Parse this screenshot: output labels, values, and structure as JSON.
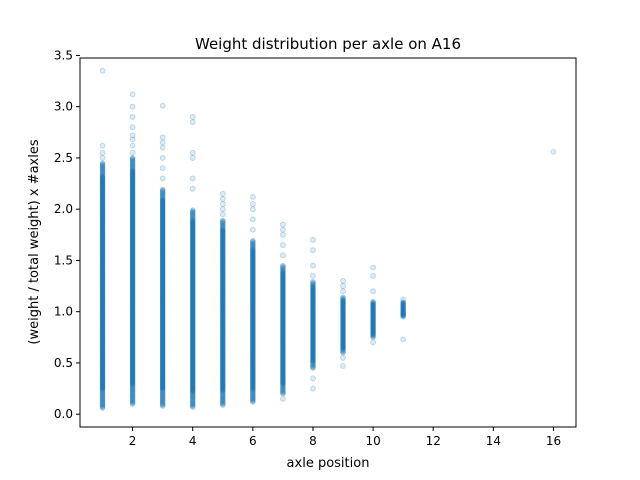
{
  "chart_data": {
    "type": "scatter",
    "title": "Weight distribution per axle on A16",
    "xlabel": "axle position",
    "ylabel": "(weight / total weight) x #axles",
    "xlim": [
      0.25,
      16.75
    ],
    "ylim": [
      -0.125,
      3.475
    ],
    "x_ticks": [
      "2",
      "4",
      "6",
      "8",
      "10",
      "12",
      "14",
      "16"
    ],
    "y_ticks": [
      "0.0",
      "0.5",
      "1.0",
      "1.5",
      "2.0",
      "2.5",
      "3.0",
      "3.5"
    ],
    "grid": false,
    "legend": "none",
    "marker_color": "#1f77b4",
    "marker_alpha": 0.15,
    "series": [
      {
        "points_by_axle": [
          {
            "x": 1,
            "band_min": 0.06,
            "band_max": 2.45,
            "outliers": [
              2.5,
              2.55,
              2.62,
              3.35
            ]
          },
          {
            "x": 2,
            "band_min": 0.1,
            "band_max": 2.5,
            "outliers": [
              2.55,
              2.62,
              2.68,
              2.72,
              2.8,
              2.9,
              3.0,
              3.12
            ]
          },
          {
            "x": 3,
            "band_min": 0.08,
            "band_max": 2.2,
            "outliers": [
              2.3,
              2.4,
              2.5,
              2.6,
              2.65,
              2.7,
              3.01
            ]
          },
          {
            "x": 4,
            "band_min": 0.07,
            "band_max": 2.0,
            "outliers": [
              2.2,
              2.3,
              2.5,
              2.55,
              2.85,
              2.9
            ]
          },
          {
            "x": 5,
            "band_min": 0.09,
            "band_max": 1.9,
            "outliers": [
              1.95,
              2.0,
              2.05,
              2.1,
              2.15
            ]
          },
          {
            "x": 6,
            "band_min": 0.12,
            "band_max": 1.7,
            "outliers": [
              1.8,
              1.9,
              2.0,
              2.05,
              2.12
            ]
          },
          {
            "x": 7,
            "band_min": 0.2,
            "band_max": 1.45,
            "outliers": [
              0.15,
              1.55,
              1.65,
              1.75,
              1.8,
              1.85
            ]
          },
          {
            "x": 8,
            "band_min": 0.45,
            "band_max": 1.3,
            "outliers": [
              0.25,
              0.35,
              1.35,
              1.45,
              1.6,
              1.7
            ]
          },
          {
            "x": 9,
            "band_min": 0.6,
            "band_max": 1.15,
            "outliers": [
              0.47,
              0.55,
              1.2,
              1.25,
              1.3
            ]
          },
          {
            "x": 10,
            "band_min": 0.75,
            "band_max": 1.1,
            "outliers": [
              0.7,
              1.2,
              1.35,
              1.43
            ]
          },
          {
            "x": 11,
            "band_min": 0.95,
            "band_max": 1.1,
            "outliers": [
              0.73,
              0.98,
              1.12
            ]
          },
          {
            "x": 16,
            "band_min": 2.56,
            "band_max": 2.56,
            "outliers": []
          }
        ]
      }
    ]
  }
}
